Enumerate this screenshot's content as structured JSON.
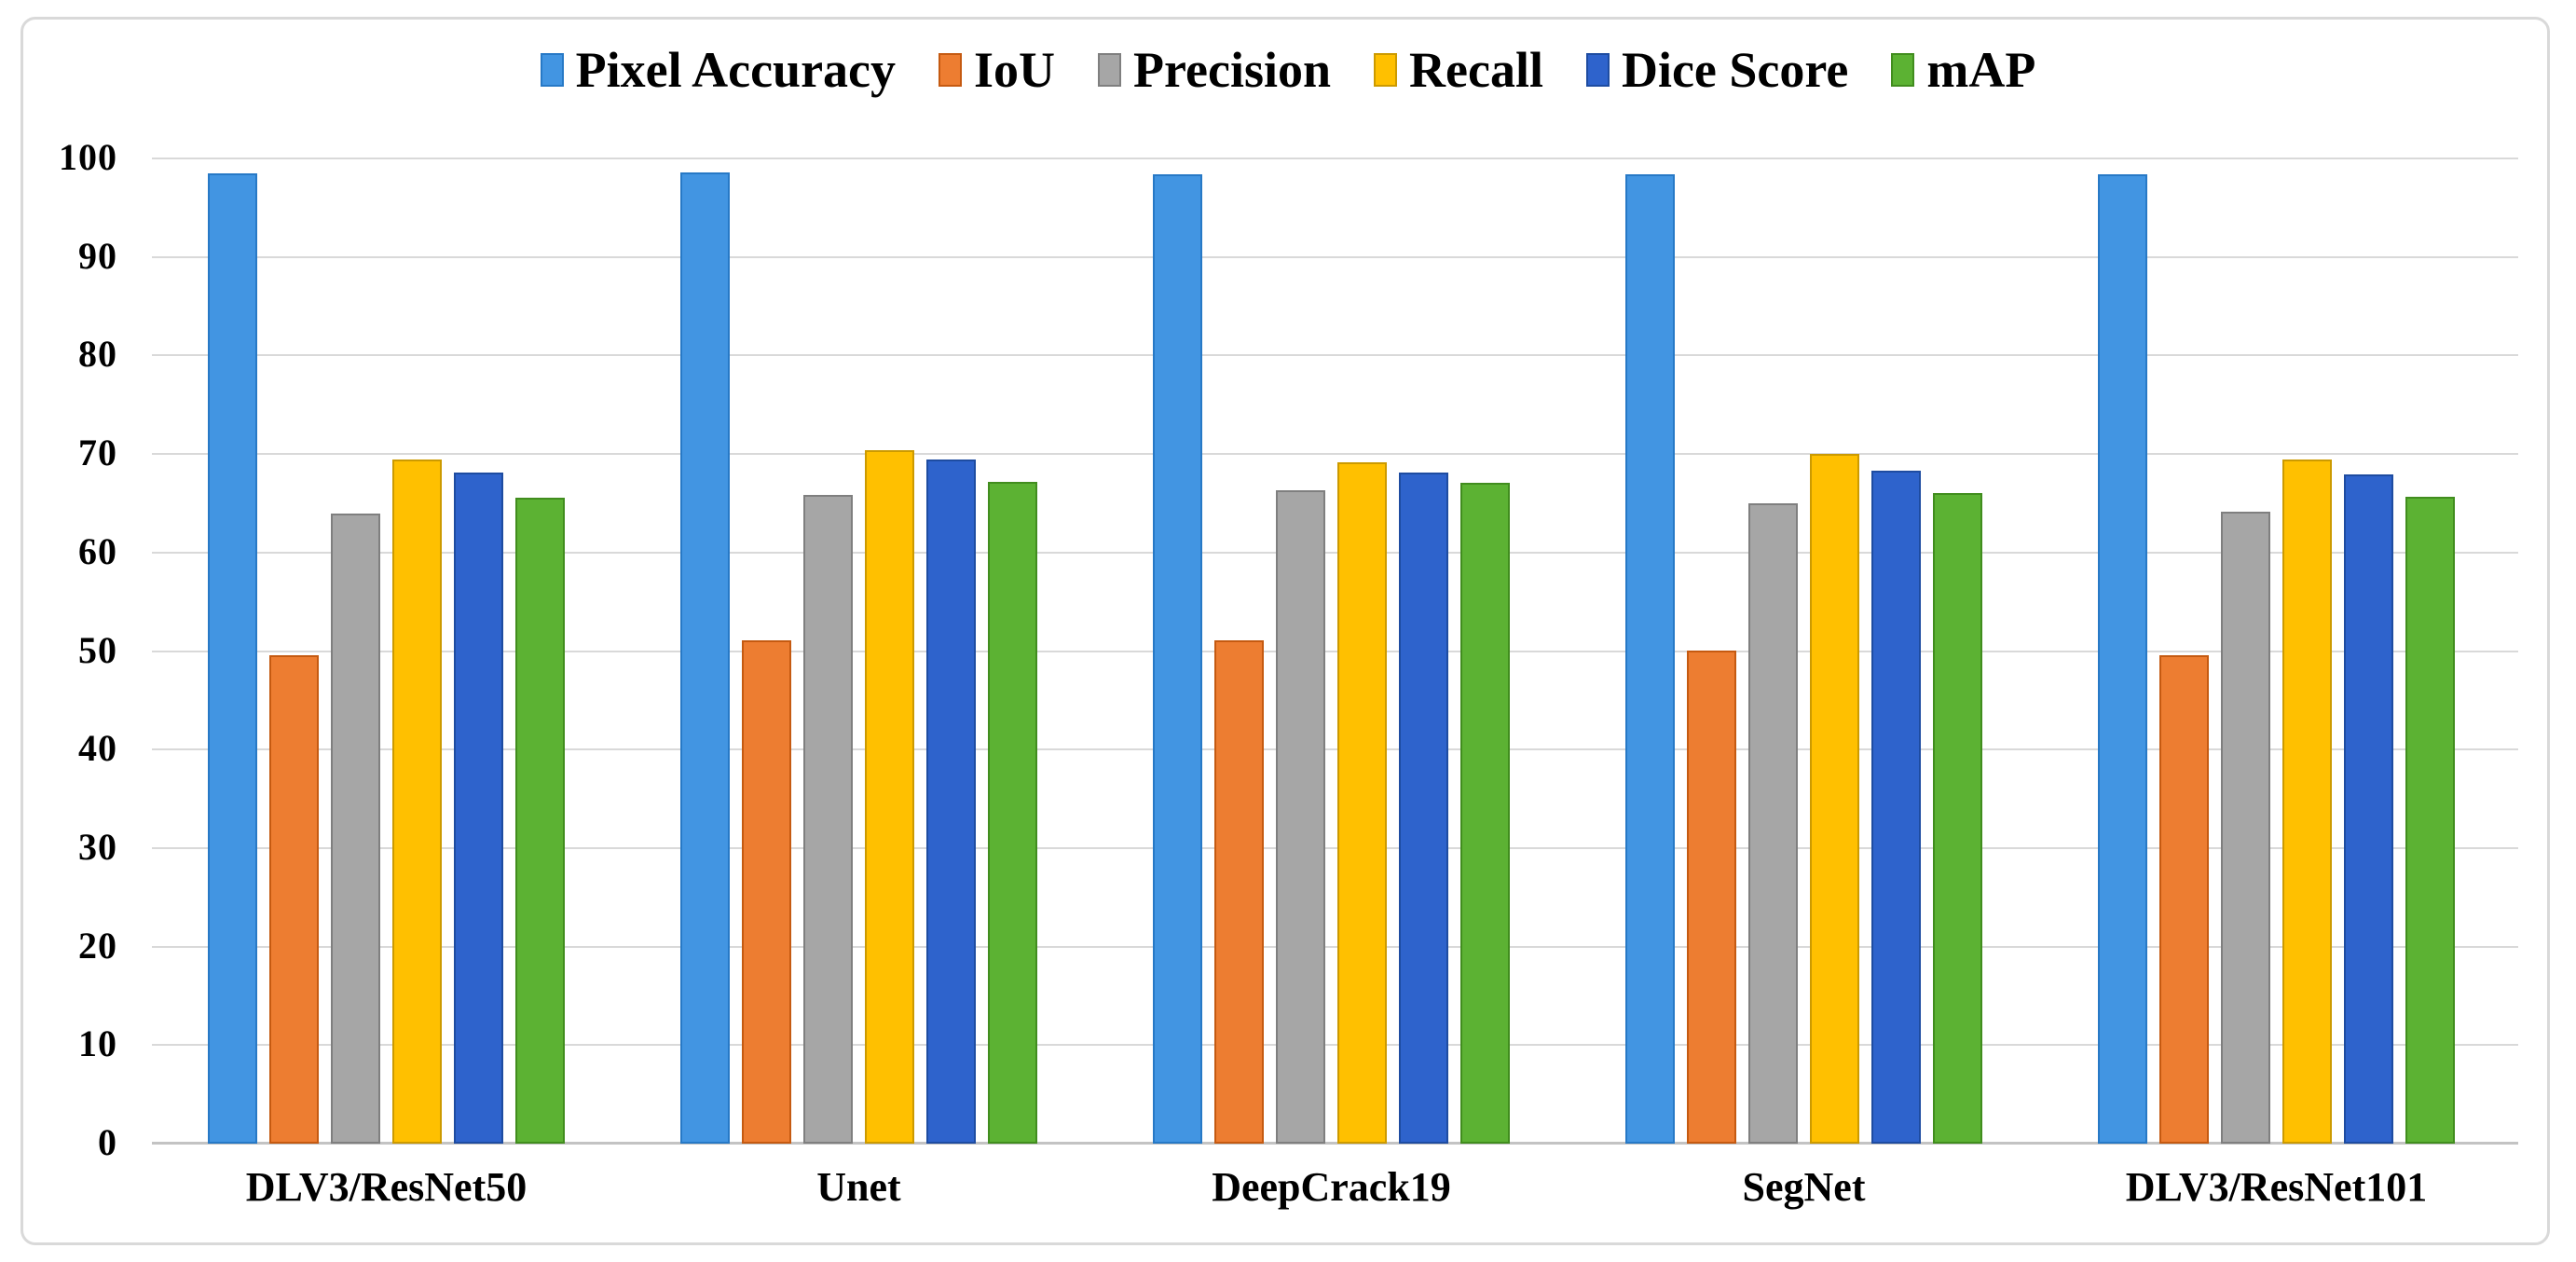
{
  "figure": {
    "background": "#ffffff",
    "frame_border_color": "#d9d9d9"
  },
  "chart_data": {
    "type": "bar",
    "title": "",
    "xlabel": "",
    "ylabel": "",
    "ylim": [
      0,
      100
    ],
    "yticks": [
      0,
      10,
      20,
      30,
      40,
      50,
      60,
      70,
      80,
      90,
      100
    ],
    "grid": "horizontal",
    "gridline_color": "#d9d9d9",
    "axis_line_color": "#c3c3c3",
    "legend_position": "top-center",
    "categories": [
      "DLV3/ResNet50",
      "Unet",
      "DeepCrack19",
      "SegNet",
      "DLV3/ResNet101"
    ],
    "series": [
      {
        "name": "Pixel Accuracy",
        "color": "#4295E2",
        "border": "#2779C6",
        "values": [
          98.5,
          98.6,
          98.4,
          98.4,
          98.4
        ]
      },
      {
        "name": "IoU",
        "color": "#ED7D31",
        "border": "#C55A11",
        "values": [
          49.6,
          51.1,
          51.1,
          50.0,
          49.6
        ]
      },
      {
        "name": "Precision",
        "color": "#A6A6A6",
        "border": "#7F7F7F",
        "values": [
          64.0,
          65.8,
          66.3,
          65.0,
          64.1
        ]
      },
      {
        "name": "Recall",
        "color": "#FFC000",
        "border": "#CC9A00",
        "values": [
          69.4,
          70.4,
          69.2,
          70.0,
          69.4
        ]
      },
      {
        "name": "Dice Score",
        "color": "#2E63CC",
        "border": "#1E4CA1",
        "values": [
          68.1,
          69.4,
          68.1,
          68.3,
          67.9
        ]
      },
      {
        "name": "mAP",
        "color": "#5CB233",
        "border": "#418D1E",
        "values": [
          65.6,
          67.2,
          67.1,
          66.0,
          65.7
        ]
      }
    ]
  }
}
